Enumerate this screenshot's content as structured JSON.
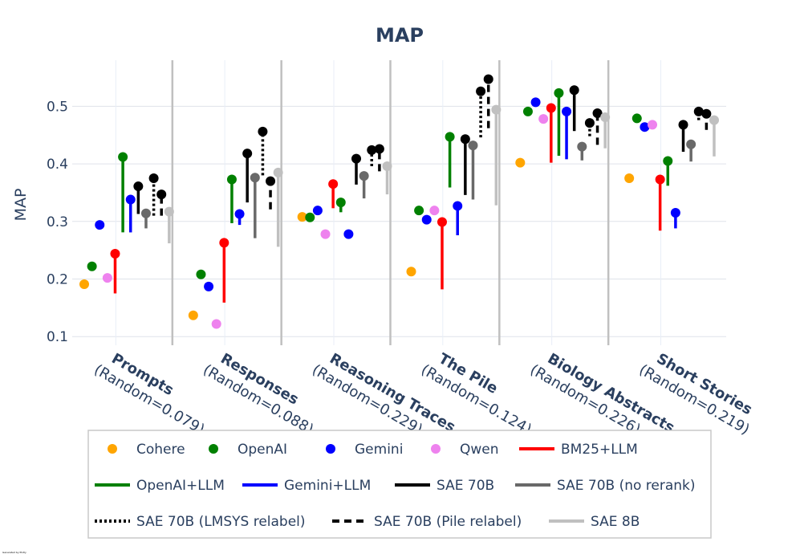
{
  "chart_data": {
    "type": "scatter",
    "title": "MAP",
    "ylabel": "MAP",
    "xlabel": "",
    "ylim": [
      0.085,
      0.58
    ],
    "yticks": [
      "0.1",
      "0.2",
      "0.3",
      "0.4",
      "0.5"
    ],
    "categories": [
      {
        "name": "Prompts",
        "sub": "(Random=0.079)"
      },
      {
        "name": "Responses",
        "sub": "(Random=0.088)"
      },
      {
        "name": "Reasoning Traces",
        "sub": "(Random=0.229)"
      },
      {
        "name": "The Pile",
        "sub": "(Random=0.124)"
      },
      {
        "name": "Biology Abstracts",
        "sub": "(Random=0.226)"
      },
      {
        "name": "Short Stories",
        "sub": "(Random=0.219)"
      }
    ],
    "series": [
      {
        "name": "Cohere",
        "kind": "marker",
        "color": "#ffa500",
        "values": [
          0.191,
          0.137,
          0.308,
          0.213,
          0.402,
          0.375
        ]
      },
      {
        "name": "OpenAI",
        "kind": "marker",
        "color": "#008000",
        "values": [
          0.222,
          0.208,
          0.307,
          0.319,
          0.491,
          0.479
        ]
      },
      {
        "name": "Gemini",
        "kind": "marker",
        "color": "#0000ff",
        "values": [
          0.294,
          0.187,
          0.319,
          0.303,
          0.507,
          0.464
        ]
      },
      {
        "name": "Qwen",
        "kind": "marker",
        "color": "#ee82ee",
        "values": [
          0.202,
          0.122,
          0.278,
          0.319,
          0.478,
          0.468
        ]
      },
      {
        "name": "BM25+LLM",
        "kind": "line",
        "dash": "solid",
        "color": "#ff0000",
        "start": [
          0.175,
          0.159,
          0.323,
          0.182,
          0.402,
          0.284
        ],
        "values": [
          0.244,
          0.263,
          0.365,
          0.299,
          0.497,
          0.373
        ]
      },
      {
        "name": "OpenAI+LLM",
        "kind": "line",
        "dash": "solid",
        "color": "#008000",
        "start": [
          0.281,
          0.297,
          0.316,
          0.359,
          0.414,
          0.362
        ],
        "values": [
          0.412,
          0.373,
          0.333,
          0.447,
          0.523,
          0.405
        ]
      },
      {
        "name": "Gemini+LLM",
        "kind": "line",
        "dash": "solid",
        "color": "#0000ff",
        "start": [
          0.281,
          0.294,
          0.278,
          0.276,
          0.408,
          0.288
        ],
        "values": [
          0.338,
          0.313,
          0.278,
          0.327,
          0.491,
          0.315
        ]
      },
      {
        "name": "SAE 70B",
        "kind": "line",
        "dash": "solid",
        "color": "#000000",
        "start": [
          0.313,
          0.333,
          0.364,
          0.346,
          0.457,
          0.421
        ],
        "values": [
          0.361,
          0.418,
          0.409,
          0.443,
          0.528,
          0.468
        ]
      },
      {
        "name": "SAE 70B (no rerank)",
        "kind": "line",
        "dash": "solid",
        "color": "#696969",
        "start": [
          0.288,
          0.271,
          0.34,
          0.338,
          0.406,
          0.404
        ],
        "values": [
          0.314,
          0.376,
          0.379,
          0.432,
          0.43,
          0.434
        ]
      },
      {
        "name": "SAE 70B (LMSYS relabel)",
        "kind": "line",
        "dash": "dot",
        "color": "#000000",
        "start": [
          0.31,
          0.38,
          0.396,
          0.446,
          0.448,
          0.476
        ],
        "values": [
          0.375,
          0.456,
          0.424,
          0.526,
          0.471,
          0.491
        ]
      },
      {
        "name": "SAE 70B (Pile relabel)",
        "kind": "line",
        "dash": "dash",
        "color": "#000000",
        "start": [
          0.31,
          0.321,
          0.387,
          0.462,
          0.433,
          0.459
        ],
        "values": [
          0.347,
          0.37,
          0.426,
          0.547,
          0.488,
          0.487
        ]
      },
      {
        "name": "SAE 8B",
        "kind": "line",
        "dash": "solid",
        "color": "#c0c0c0",
        "start": [
          0.262,
          0.256,
          0.347,
          0.328,
          0.427,
          0.413
        ],
        "values": [
          0.317,
          0.385,
          0.396,
          0.494,
          0.481,
          0.476
        ]
      }
    ],
    "legend": {
      "position": "bottom",
      "items": [
        "Cohere",
        "OpenAI",
        "Gemini",
        "Qwen",
        "BM25+LLM",
        "OpenAI+LLM",
        "Gemini+LLM",
        "SAE 70B",
        "SAE 70B (no rerank)",
        "SAE 70B (LMSYS relabel)",
        "SAE 70B (Pile relabel)",
        "SAE 8B"
      ]
    },
    "footnote": "Generated by Plotly"
  }
}
